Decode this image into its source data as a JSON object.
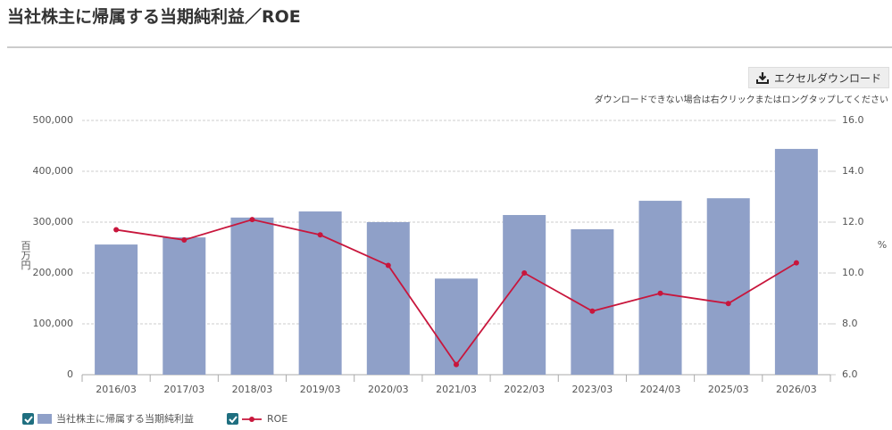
{
  "title": "当社株主に帰属する当期純利益／ROE",
  "download_button": "エクセルダウンロード",
  "download_note": "ダウンロードできない場合は右クリックまたはロングタップしてください",
  "chart_data": {
    "type": "bar",
    "y_label": "百万円",
    "y2_label": "%",
    "categories": [
      "2016/03",
      "2017/03",
      "2018/03",
      "2019/03",
      "2020/03",
      "2021/03",
      "2022/03",
      "2023/03",
      "2024/03",
      "2025/03",
      "2026/03"
    ],
    "series": [
      {
        "name": "当社株主に帰属する当期純利益",
        "type": "bar",
        "color": "#8fa0c8",
        "values": [
          256000,
          270000,
          309000,
          321000,
          300000,
          189000,
          314000,
          286000,
          342000,
          347000,
          444000
        ]
      },
      {
        "name": "ROE",
        "type": "line",
        "axis": "y2",
        "color": "#c8163c",
        "values": [
          11.7,
          11.3,
          12.1,
          11.5,
          10.3,
          6.4,
          10.0,
          8.5,
          9.2,
          8.8,
          10.4
        ]
      }
    ],
    "ylim": [
      0,
      500000
    ],
    "yticks": [
      0,
      {
        "value": 100000,
        "label": "100,000"
      },
      {
        "value": 200000,
        "label": "200,000"
      },
      {
        "value": 300000,
        "label": "300,000"
      },
      {
        "value": 400000,
        "label": "400,000"
      },
      {
        "value": 500000,
        "label": "500,000"
      }
    ],
    "y2lim": [
      6,
      16
    ],
    "y2ticks": [
      {
        "value": 6,
        "label": "6.0"
      },
      {
        "value": 8,
        "label": "8.0"
      },
      {
        "value": 10,
        "label": "10.0"
      },
      {
        "value": 12,
        "label": "12.0"
      },
      {
        "value": 14,
        "label": "14.0"
      },
      {
        "value": 16,
        "label": "16.0"
      }
    ],
    "grid": true
  }
}
